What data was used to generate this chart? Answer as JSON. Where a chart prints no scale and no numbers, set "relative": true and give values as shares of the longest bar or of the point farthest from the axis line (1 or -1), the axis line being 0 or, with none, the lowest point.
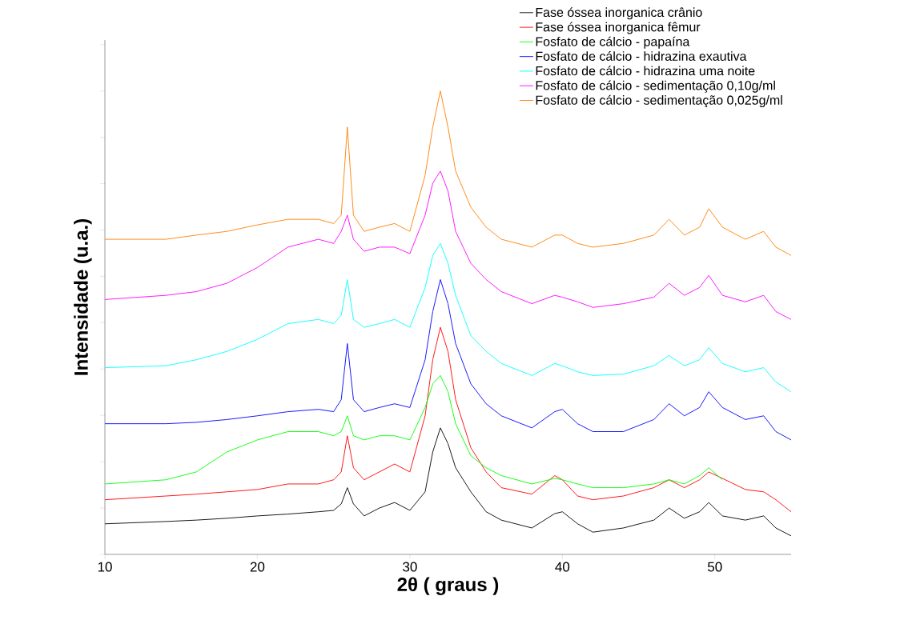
{
  "chart_data": {
    "type": "line",
    "relative": true,
    "xlabel": "2θ ( graus )",
    "ylabel": "Intensidade (u.a.)",
    "x": [
      10,
      14,
      16,
      18,
      20,
      22,
      24,
      25,
      25.5,
      25.9,
      26.3,
      27,
      28,
      29,
      30,
      31,
      31.5,
      32,
      32.5,
      33,
      34,
      35,
      36,
      38,
      39.5,
      40,
      41,
      42,
      44,
      46,
      47,
      48,
      49,
      49.6,
      50.5,
      52,
      53.2,
      54,
      55
    ],
    "xlim": [
      10,
      55
    ],
    "xticks": [
      10,
      20,
      30,
      40,
      50
    ],
    "legend": "top right",
    "series": [
      {
        "name": "Fase óssea inorganica crânio",
        "color": "#000000",
        "values": [
          0.066,
          0.071,
          0.074,
          0.078,
          0.083,
          0.087,
          0.092,
          0.095,
          0.109,
          0.144,
          0.109,
          0.083,
          0.1,
          0.112,
          0.095,
          0.135,
          0.221,
          0.273,
          0.239,
          0.187,
          0.135,
          0.092,
          0.074,
          0.057,
          0.088,
          0.092,
          0.066,
          0.048,
          0.057,
          0.074,
          0.1,
          0.078,
          0.092,
          0.112,
          0.083,
          0.074,
          0.083,
          0.057,
          0.04
        ]
      },
      {
        "name": "Fase óssea inorganica fêmur",
        "color": "#ff0000",
        "values": [
          0.118,
          0.126,
          0.13,
          0.135,
          0.14,
          0.152,
          0.152,
          0.161,
          0.178,
          0.256,
          0.187,
          0.161,
          0.178,
          0.195,
          0.178,
          0.299,
          0.42,
          0.49,
          0.438,
          0.334,
          0.23,
          0.178,
          0.144,
          0.13,
          0.17,
          0.161,
          0.126,
          0.118,
          0.126,
          0.144,
          0.161,
          0.144,
          0.161,
          0.178,
          0.164,
          0.14,
          0.135,
          0.118,
          0.092
        ]
      },
      {
        "name": "Fosfato de cálcio - papaína",
        "color": "#00ff00",
        "values": [
          0.152,
          0.161,
          0.178,
          0.221,
          0.247,
          0.265,
          0.265,
          0.256,
          0.265,
          0.299,
          0.256,
          0.247,
          0.256,
          0.256,
          0.247,
          0.317,
          0.368,
          0.386,
          0.351,
          0.282,
          0.213,
          0.187,
          0.17,
          0.152,
          0.164,
          0.161,
          0.152,
          0.144,
          0.144,
          0.152,
          0.161,
          0.152,
          0.17,
          0.187,
          0.161,
          null,
          null,
          null,
          null
        ]
      },
      {
        "name": "Fosfato de cálcio - hidrazina exautiva",
        "color": "#0000ff",
        "values": [
          0.282,
          0.282,
          0.285,
          0.291,
          0.299,
          0.308,
          0.313,
          0.308,
          0.334,
          0.455,
          0.334,
          0.308,
          0.317,
          0.325,
          0.317,
          0.42,
          0.524,
          0.593,
          0.541,
          0.455,
          0.368,
          0.325,
          0.299,
          0.273,
          0.308,
          0.313,
          0.282,
          0.265,
          0.265,
          0.291,
          0.325,
          0.299,
          0.317,
          0.351,
          0.317,
          0.291,
          0.299,
          0.265,
          0.247
        ]
      },
      {
        "name": "Fosfato de cálcio - hidrazina uma noite",
        "color": "#00ffff",
        "values": [
          0.403,
          0.407,
          0.42,
          0.438,
          0.464,
          0.498,
          0.507,
          0.498,
          0.516,
          0.593,
          0.507,
          0.49,
          0.498,
          0.507,
          0.49,
          0.576,
          0.645,
          0.671,
          0.628,
          0.559,
          0.472,
          0.438,
          0.412,
          0.386,
          0.412,
          0.407,
          0.394,
          0.386,
          0.389,
          0.407,
          0.429,
          0.407,
          0.42,
          0.446,
          0.412,
          0.394,
          0.403,
          0.372,
          0.351
        ]
      },
      {
        "name": "Fosfato de cálcio - sedimentação 0,10g/ml",
        "color": "#ff00ff",
        "values": [
          0.55,
          0.559,
          0.567,
          0.585,
          0.619,
          0.663,
          0.68,
          0.671,
          0.697,
          0.732,
          0.68,
          0.654,
          0.663,
          0.663,
          0.649,
          0.732,
          0.801,
          0.827,
          0.784,
          0.697,
          0.628,
          0.593,
          0.567,
          0.541,
          0.559,
          0.555,
          0.545,
          0.533,
          0.541,
          0.555,
          0.585,
          0.559,
          0.576,
          0.602,
          0.559,
          0.545,
          0.559,
          0.524,
          0.507
        ]
      },
      {
        "name": "Fosfato de cálcio - sedimentação 0,025g/ml",
        "color": "#ff8000",
        "values": [
          0.68,
          0.68,
          0.689,
          0.697,
          0.711,
          0.723,
          0.723,
          0.714,
          0.732,
          0.922,
          0.732,
          0.697,
          0.706,
          0.714,
          0.697,
          0.818,
          0.922,
          1,
          0.922,
          0.827,
          0.749,
          0.706,
          0.68,
          0.663,
          0.689,
          0.689,
          0.671,
          0.663,
          0.671,
          0.689,
          0.723,
          0.689,
          0.706,
          0.746,
          0.706,
          0.68,
          0.697,
          0.663,
          0.645
        ]
      }
    ]
  }
}
